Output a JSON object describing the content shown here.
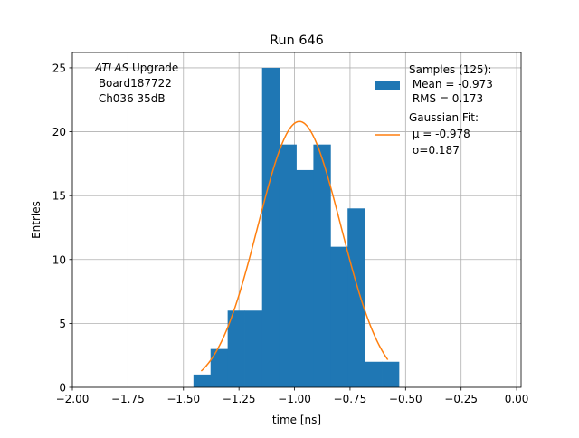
{
  "chart_data": {
    "type": "bar",
    "title": "Run 646",
    "xlabel": "time [ns]",
    "ylabel": "Entries",
    "xlim": [
      -2.0,
      0.02
    ],
    "ylim": [
      0,
      26.2
    ],
    "grid": true,
    "x_ticks": [
      -2.0,
      -1.75,
      -1.5,
      -1.25,
      -1.0,
      -0.75,
      -0.5,
      -0.25,
      0.0
    ],
    "x_tick_labels": [
      "−2.00",
      "−1.75",
      "−1.50",
      "−1.25",
      "−1.00",
      "−0.75",
      "−0.50",
      "−0.25",
      "0.00"
    ],
    "y_ticks": [
      0,
      5,
      10,
      15,
      20,
      25
    ],
    "y_tick_labels": [
      "0",
      "5",
      "10",
      "15",
      "20",
      "25"
    ],
    "histogram": {
      "bin_edges": [
        -1.455,
        -1.378,
        -1.301,
        -1.224,
        -1.146,
        -1.069,
        -0.992,
        -0.915,
        -0.838,
        -0.761,
        -0.684,
        -0.607,
        -0.53
      ],
      "counts": [
        1,
        3,
        6,
        6,
        25,
        19,
        17,
        19,
        11,
        14,
        2,
        2
      ],
      "color": "#1f77b4"
    },
    "fit": {
      "type": "gaussian",
      "mu": -0.978,
      "sigma": 0.187,
      "amplitude": 20.8,
      "x_range": [
        -1.42,
        -0.58
      ],
      "color": "#ff7f0e"
    },
    "legend_position": "top-right",
    "legend": [
      {
        "kind": "patch",
        "lines": [
          "Samples (125):",
          " Mean = -0.973",
          " RMS = 0.173"
        ]
      },
      {
        "kind": "line",
        "lines": [
          "Gaussian Fit:",
          " μ = -0.978",
          " σ=0.187"
        ]
      }
    ],
    "annotation": {
      "italic": "ATLAS",
      "rest": " Upgrade",
      "lines": [
        " Board187722",
        " Ch036 35dB"
      ]
    }
  }
}
